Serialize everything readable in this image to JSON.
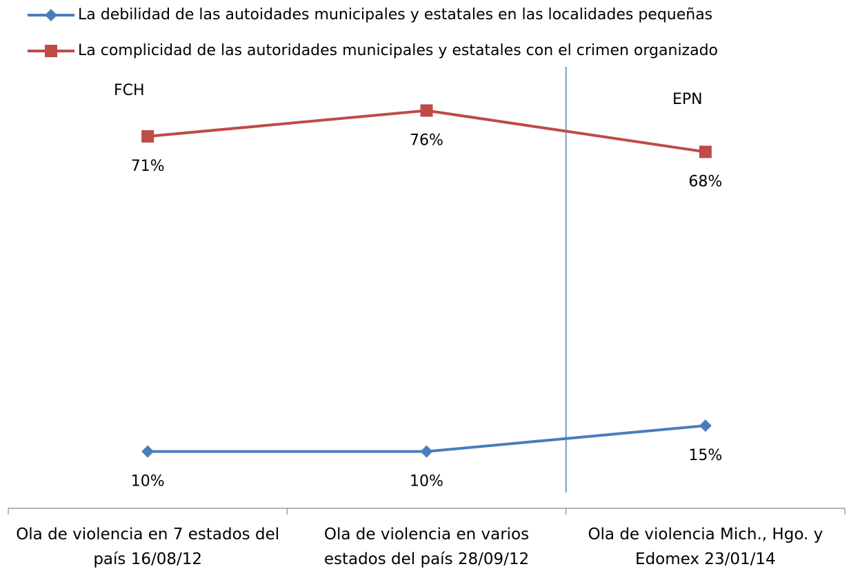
{
  "chart_data": {
    "type": "line",
    "categories": [
      "Ola de violencia en 7 estados del país 16/08/12",
      "Ola de violencia en varios estados del país 28/09/12",
      "Ola de violencia Mich., Hgo. y Edomex 23/01/14"
    ],
    "series": [
      {
        "name": "La debilidad de las autoidades municipales y estatales en las localidades pequeñas",
        "color": "#4a7ebb",
        "marker": "diamond",
        "values": [
          10,
          10,
          15
        ],
        "value_labels": [
          "10%",
          "10%",
          "15%"
        ]
      },
      {
        "name": "La complicidad de las autoridades municipales y estatales con el crimen organizado",
        "color": "#be4b48",
        "marker": "square",
        "values": [
          71,
          76,
          68
        ],
        "value_labels": [
          "71%",
          "76%",
          "68%"
        ]
      }
    ],
    "ylim": [
      -1,
      80
    ],
    "annotations": [
      "FCH",
      "EPN"
    ],
    "legend": "top"
  }
}
